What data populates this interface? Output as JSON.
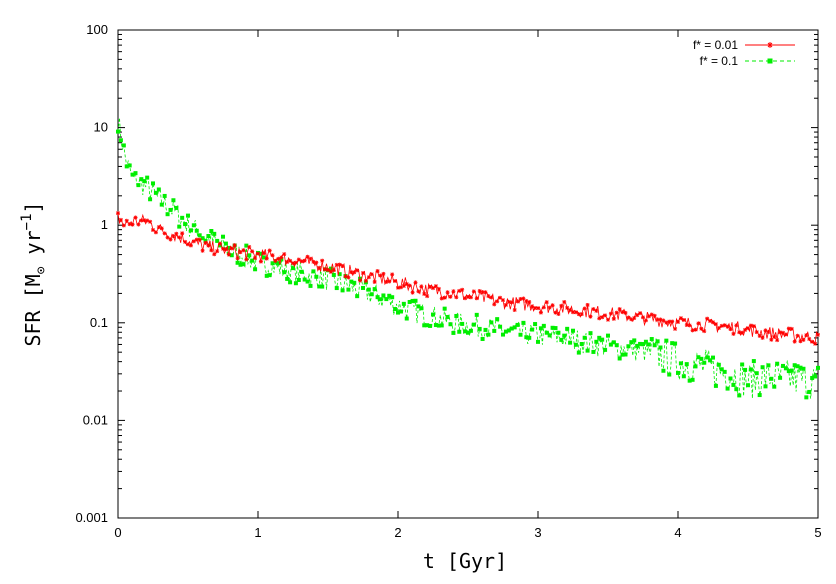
{
  "chart_data": {
    "type": "line",
    "xlabel": "t  [Gyr]",
    "ylabel_parts": {
      "prefix": "SFR  [M",
      "subscript": "⊙",
      "middle": "  yr",
      "superscript": "−1",
      "suffix": "]"
    },
    "xlim": [
      0,
      5
    ],
    "ylim": [
      0.001,
      100
    ],
    "yscale": "log",
    "grid": false,
    "legend_position": "top-right",
    "x_ticks": [
      "0",
      "1",
      "2",
      "3",
      "4",
      "5"
    ],
    "y_ticks": [
      "0.001",
      "0.01",
      "0.1",
      "1",
      "10",
      "100"
    ],
    "x": [
      0,
      0.05,
      0.1,
      0.2,
      0.3,
      0.4,
      0.5,
      0.6,
      0.7,
      0.8,
      0.9,
      1.0,
      1.2,
      1.4,
      1.5,
      1.6,
      1.8,
      2.0,
      2.2,
      2.4,
      2.6,
      2.8,
      3.0,
      3.2,
      3.4,
      3.6,
      3.8,
      4.0,
      4.2,
      4.4,
      4.5,
      4.6,
      4.8,
      5.0
    ],
    "series": [
      {
        "name": "f* = 0.01",
        "color": "#ff0000",
        "marker": "star",
        "values": [
          1.2,
          1.0,
          1.1,
          1.1,
          0.9,
          0.8,
          0.7,
          0.62,
          0.58,
          0.55,
          0.52,
          0.5,
          0.45,
          0.4,
          0.38,
          0.35,
          0.3,
          0.26,
          0.22,
          0.2,
          0.18,
          0.16,
          0.15,
          0.14,
          0.13,
          0.12,
          0.11,
          0.1,
          0.095,
          0.09,
          0.085,
          0.08,
          0.075,
          0.07
        ]
      },
      {
        "name": "f* = 0.1",
        "color": "#00ee00",
        "marker": "square",
        "values": [
          12,
          5.0,
          3.0,
          2.5,
          1.8,
          1.4,
          1.0,
          0.8,
          0.65,
          0.55,
          0.48,
          0.42,
          0.35,
          0.3,
          0.28,
          0.25,
          0.2,
          0.15,
          0.12,
          0.1,
          0.09,
          0.08,
          0.075,
          0.07,
          0.06,
          0.055,
          0.05,
          0.04,
          0.035,
          0.03,
          0.025,
          0.028,
          0.027,
          0.025
        ]
      }
    ]
  }
}
